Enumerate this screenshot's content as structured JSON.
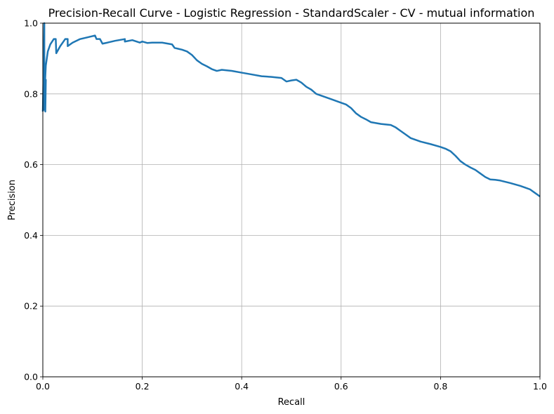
{
  "chart_data": {
    "type": "line",
    "title": "Precision-Recall Curve - Logistic Regression - StandardScaler - CV - mutual information",
    "xlabel": "Recall",
    "ylabel": "Precision",
    "xlim": [
      0,
      1
    ],
    "ylim": [
      0,
      1
    ],
    "xticks": [
      "0.0",
      "0.2",
      "0.4",
      "0.6",
      "0.8",
      "1.0"
    ],
    "yticks": [
      "0.0",
      "0.2",
      "0.4",
      "0.6",
      "0.8",
      "1.0"
    ],
    "grid": true,
    "line_color": "#1f77b4",
    "series": [
      {
        "x": [
          0.0,
          0.002,
          0.003,
          0.003,
          0.005,
          0.006,
          0.004,
          0.003,
          0.003,
          0.004,
          0.006,
          0.01,
          0.015,
          0.022,
          0.026,
          0.027,
          0.035,
          0.045,
          0.05,
          0.05,
          0.06,
          0.075,
          0.09,
          0.105,
          0.108,
          0.115,
          0.12,
          0.13,
          0.145,
          0.165,
          0.165,
          0.18,
          0.195,
          0.2,
          0.21,
          0.22,
          0.24,
          0.26,
          0.265,
          0.28,
          0.29,
          0.3,
          0.31,
          0.32,
          0.33,
          0.34,
          0.35,
          0.36,
          0.38,
          0.4,
          0.42,
          0.44,
          0.46,
          0.48,
          0.49,
          0.5,
          0.51,
          0.52,
          0.53,
          0.54,
          0.55,
          0.56,
          0.58,
          0.6,
          0.61,
          0.62,
          0.63,
          0.64,
          0.65,
          0.66,
          0.68,
          0.7,
          0.71,
          0.72,
          0.73,
          0.74,
          0.75,
          0.76,
          0.78,
          0.8,
          0.81,
          0.82,
          0.83,
          0.84,
          0.85,
          0.86,
          0.87,
          0.88,
          0.89,
          0.9,
          0.91,
          0.92,
          0.94,
          0.96,
          0.97,
          0.98,
          0.99,
          1.0
        ],
        "y": [
          0.75,
          0.9,
          1.0,
          0.77,
          0.75,
          0.84,
          0.79,
          0.77,
          0.755,
          0.82,
          0.88,
          0.92,
          0.94,
          0.955,
          0.955,
          0.915,
          0.935,
          0.955,
          0.955,
          0.935,
          0.945,
          0.955,
          0.96,
          0.965,
          0.955,
          0.955,
          0.942,
          0.945,
          0.95,
          0.955,
          0.948,
          0.952,
          0.945,
          0.948,
          0.944,
          0.945,
          0.945,
          0.94,
          0.93,
          0.925,
          0.92,
          0.91,
          0.895,
          0.885,
          0.878,
          0.87,
          0.865,
          0.868,
          0.865,
          0.86,
          0.855,
          0.85,
          0.848,
          0.845,
          0.835,
          0.838,
          0.84,
          0.832,
          0.82,
          0.812,
          0.8,
          0.795,
          0.785,
          0.775,
          0.77,
          0.76,
          0.745,
          0.735,
          0.728,
          0.72,
          0.715,
          0.712,
          0.705,
          0.695,
          0.685,
          0.675,
          0.67,
          0.665,
          0.658,
          0.65,
          0.645,
          0.638,
          0.625,
          0.61,
          0.6,
          0.592,
          0.585,
          0.575,
          0.565,
          0.558,
          0.557,
          0.555,
          0.548,
          0.54,
          0.535,
          0.53,
          0.52,
          0.51
        ]
      }
    ]
  }
}
